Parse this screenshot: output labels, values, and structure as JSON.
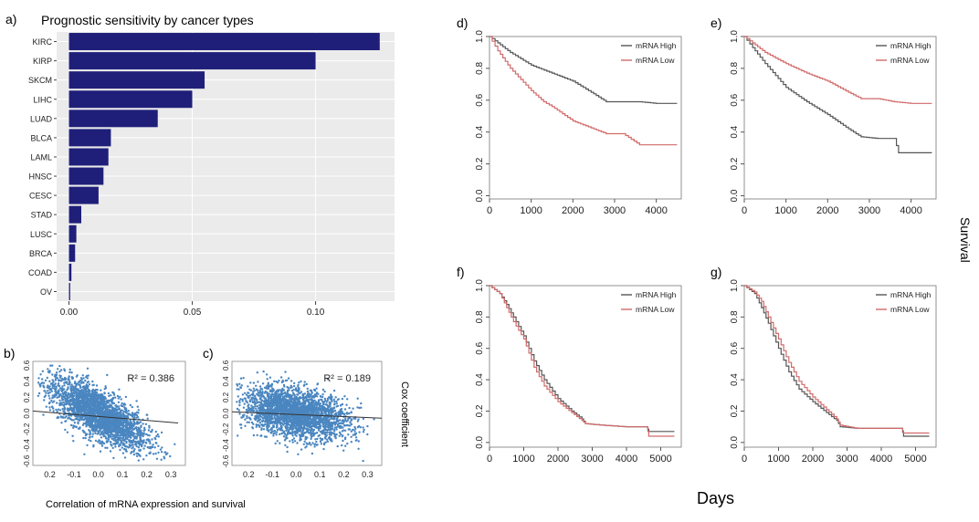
{
  "colors": {
    "bar": "#1f1f7a",
    "panel_bg": "#ebebeb",
    "grid": "#ffffff",
    "scatter": "#4a86c0",
    "fit": "#333333",
    "km_high": "#555555",
    "km_low": "#d16a6a"
  },
  "figure": {
    "survival_label": "Survival",
    "days_label": "Days",
    "cox_label": "Cox coefficient",
    "correlation_label": "Correlation of mRNA expression and survival"
  },
  "chart_data": [
    {
      "id": "a",
      "panel_letter": "a)",
      "type": "bar",
      "orientation": "horizontal",
      "title": "Prognostic sensitivity by cancer types",
      "categories": [
        "KIRC",
        "KIRP",
        "SKCM",
        "LIHC",
        "LUAD",
        "BLCA",
        "LAML",
        "HNSC",
        "CESC",
        "STAD",
        "LUSC",
        "BRCA",
        "COAD",
        "OV"
      ],
      "values": [
        0.126,
        0.1,
        0.055,
        0.05,
        0.036,
        0.017,
        0.016,
        0.014,
        0.012,
        0.005,
        0.003,
        0.0025,
        0.001,
        0.0005
      ],
      "xlim": [
        -0.005,
        0.132
      ],
      "xticks": [
        "0.00",
        "0.05",
        "0.10"
      ],
      "grid": true
    },
    {
      "id": "b",
      "panel_letter": "b)",
      "type": "scatter",
      "annotation": "R² = 0.386",
      "xlim": [
        -0.27,
        0.36
      ],
      "ylim": [
        -0.65,
        0.65
      ],
      "xticks": [
        "0.2",
        "-0.1",
        "0.0",
        "0.1",
        "0.2",
        "0.3"
      ],
      "yticks": [
        "0.6",
        "0.4",
        "0.2",
        "0.0",
        "-0.2",
        "-0.4",
        "-0.6"
      ],
      "fit_line": {
        "x": [
          -0.27,
          0.33
        ],
        "y": [
          0.03,
          -0.12
        ]
      }
    },
    {
      "id": "c",
      "panel_letter": "c)",
      "type": "scatter",
      "annotation": "R² = 0.189",
      "xlim": [
        -0.27,
        0.36
      ],
      "ylim": [
        -0.65,
        0.65
      ],
      "xticks": [
        "0.2",
        "-0.1",
        "0.0",
        "0.1",
        "0.2",
        "0.3"
      ],
      "yticks": [
        "0.6",
        "0.4",
        "0.2",
        "0.0",
        "-0.2",
        "-0.4",
        "-0.6"
      ],
      "fit_line": {
        "x": [
          -0.27,
          0.36
        ],
        "y": [
          0.02,
          -0.06
        ]
      }
    },
    {
      "id": "d",
      "panel_letter": "d)",
      "type": "line",
      "xlim": [
        0,
        4600
      ],
      "ylim": [
        -0.02,
        1.0
      ],
      "xticks": [
        "0",
        "1000",
        "2000",
        "3000",
        "4000"
      ],
      "yticks": [
        "1.0",
        "0.8",
        "0.6",
        "0.4",
        "0.2",
        "0.0"
      ],
      "legend_position": "top-right",
      "series": [
        {
          "name": "mRNA High",
          "x": [
            0,
            200,
            500,
            1000,
            1500,
            2000,
            2500,
            2800,
            3200,
            3600,
            4000,
            4500
          ],
          "y": [
            1.0,
            0.96,
            0.9,
            0.82,
            0.77,
            0.72,
            0.64,
            0.59,
            0.59,
            0.59,
            0.58,
            0.58
          ]
        },
        {
          "name": "mRNA Low",
          "x": [
            0,
            200,
            500,
            1000,
            1300,
            1500,
            2000,
            2500,
            2800,
            3200,
            3600,
            4000,
            4500
          ],
          "y": [
            1.0,
            0.91,
            0.8,
            0.66,
            0.59,
            0.56,
            0.47,
            0.42,
            0.39,
            0.39,
            0.32,
            0.32,
            0.32
          ]
        }
      ]
    },
    {
      "id": "e",
      "panel_letter": "e)",
      "type": "line",
      "xlim": [
        0,
        4600
      ],
      "ylim": [
        -0.02,
        1.0
      ],
      "xticks": [
        "0",
        "1000",
        "2000",
        "3000",
        "4000"
      ],
      "yticks": [
        "1.0",
        "0.8",
        "0.6",
        "0.4",
        "0.2",
        "0.0"
      ],
      "legend_position": "top-right",
      "series": [
        {
          "name": "mRNA High",
          "x": [
            0,
            200,
            500,
            1000,
            1500,
            2000,
            2500,
            2800,
            3200,
            3600,
            3700,
            4000,
            4500
          ],
          "y": [
            1.0,
            0.93,
            0.83,
            0.68,
            0.59,
            0.51,
            0.42,
            0.37,
            0.36,
            0.36,
            0.27,
            0.27,
            0.27
          ]
        },
        {
          "name": "mRNA Low",
          "x": [
            0,
            200,
            500,
            1000,
            1500,
            2000,
            2500,
            2800,
            3200,
            3600,
            4000,
            4500
          ],
          "y": [
            1.0,
            0.96,
            0.9,
            0.83,
            0.77,
            0.72,
            0.65,
            0.61,
            0.61,
            0.59,
            0.58,
            0.58
          ]
        }
      ]
    },
    {
      "id": "f",
      "panel_letter": "f)",
      "type": "line",
      "xlim": [
        0,
        5600
      ],
      "ylim": [
        -0.03,
        1.0
      ],
      "xticks": [
        "0",
        "1000",
        "2000",
        "3000",
        "4000",
        "5000"
      ],
      "yticks": [
        "1.0",
        "0.8",
        "0.6",
        "0.4",
        "0.2",
        "0.0"
      ],
      "legend_position": "top-right",
      "series": [
        {
          "name": "mRNA High",
          "x": [
            0,
            300,
            500,
            700,
            1000,
            1300,
            1600,
            2000,
            2400,
            2700,
            2800,
            3300,
            4000,
            4600,
            4650,
            5400
          ],
          "y": [
            1.0,
            0.95,
            0.88,
            0.8,
            0.68,
            0.52,
            0.4,
            0.28,
            0.2,
            0.15,
            0.12,
            0.11,
            0.1,
            0.1,
            0.07,
            0.07
          ]
        },
        {
          "name": "mRNA Low",
          "x": [
            0,
            300,
            500,
            700,
            1000,
            1300,
            1600,
            2000,
            2400,
            2700,
            2800,
            3300,
            4000,
            4600,
            4650,
            5400
          ],
          "y": [
            1.0,
            0.95,
            0.86,
            0.77,
            0.66,
            0.48,
            0.36,
            0.26,
            0.19,
            0.14,
            0.12,
            0.11,
            0.1,
            0.1,
            0.04,
            0.04
          ]
        }
      ]
    },
    {
      "id": "g",
      "panel_letter": "g)",
      "type": "line",
      "xlim": [
        0,
        5600
      ],
      "ylim": [
        -0.03,
        1.0
      ],
      "xticks": [
        "0",
        "1000",
        "2000",
        "3000",
        "4000",
        "5000"
      ],
      "yticks": [
        "1.0",
        "0.8",
        "0.6",
        "0.4",
        "0.2",
        "0.0"
      ],
      "legend_position": "top-right",
      "series": [
        {
          "name": "mRNA High",
          "x": [
            0,
            300,
            500,
            700,
            1000,
            1300,
            1600,
            2000,
            2400,
            2700,
            2800,
            3300,
            4000,
            4600,
            4650,
            5400
          ],
          "y": [
            1.0,
            0.95,
            0.86,
            0.76,
            0.6,
            0.45,
            0.34,
            0.26,
            0.19,
            0.14,
            0.1,
            0.09,
            0.09,
            0.09,
            0.04,
            0.04
          ]
        },
        {
          "name": "mRNA Low",
          "x": [
            0,
            300,
            500,
            700,
            1000,
            1300,
            1600,
            2000,
            2400,
            2700,
            2800,
            3300,
            4000,
            4600,
            4650,
            5400
          ],
          "y": [
            1.0,
            0.96,
            0.9,
            0.8,
            0.66,
            0.51,
            0.39,
            0.29,
            0.21,
            0.15,
            0.11,
            0.09,
            0.09,
            0.09,
            0.06,
            0.06
          ]
        }
      ]
    }
  ]
}
